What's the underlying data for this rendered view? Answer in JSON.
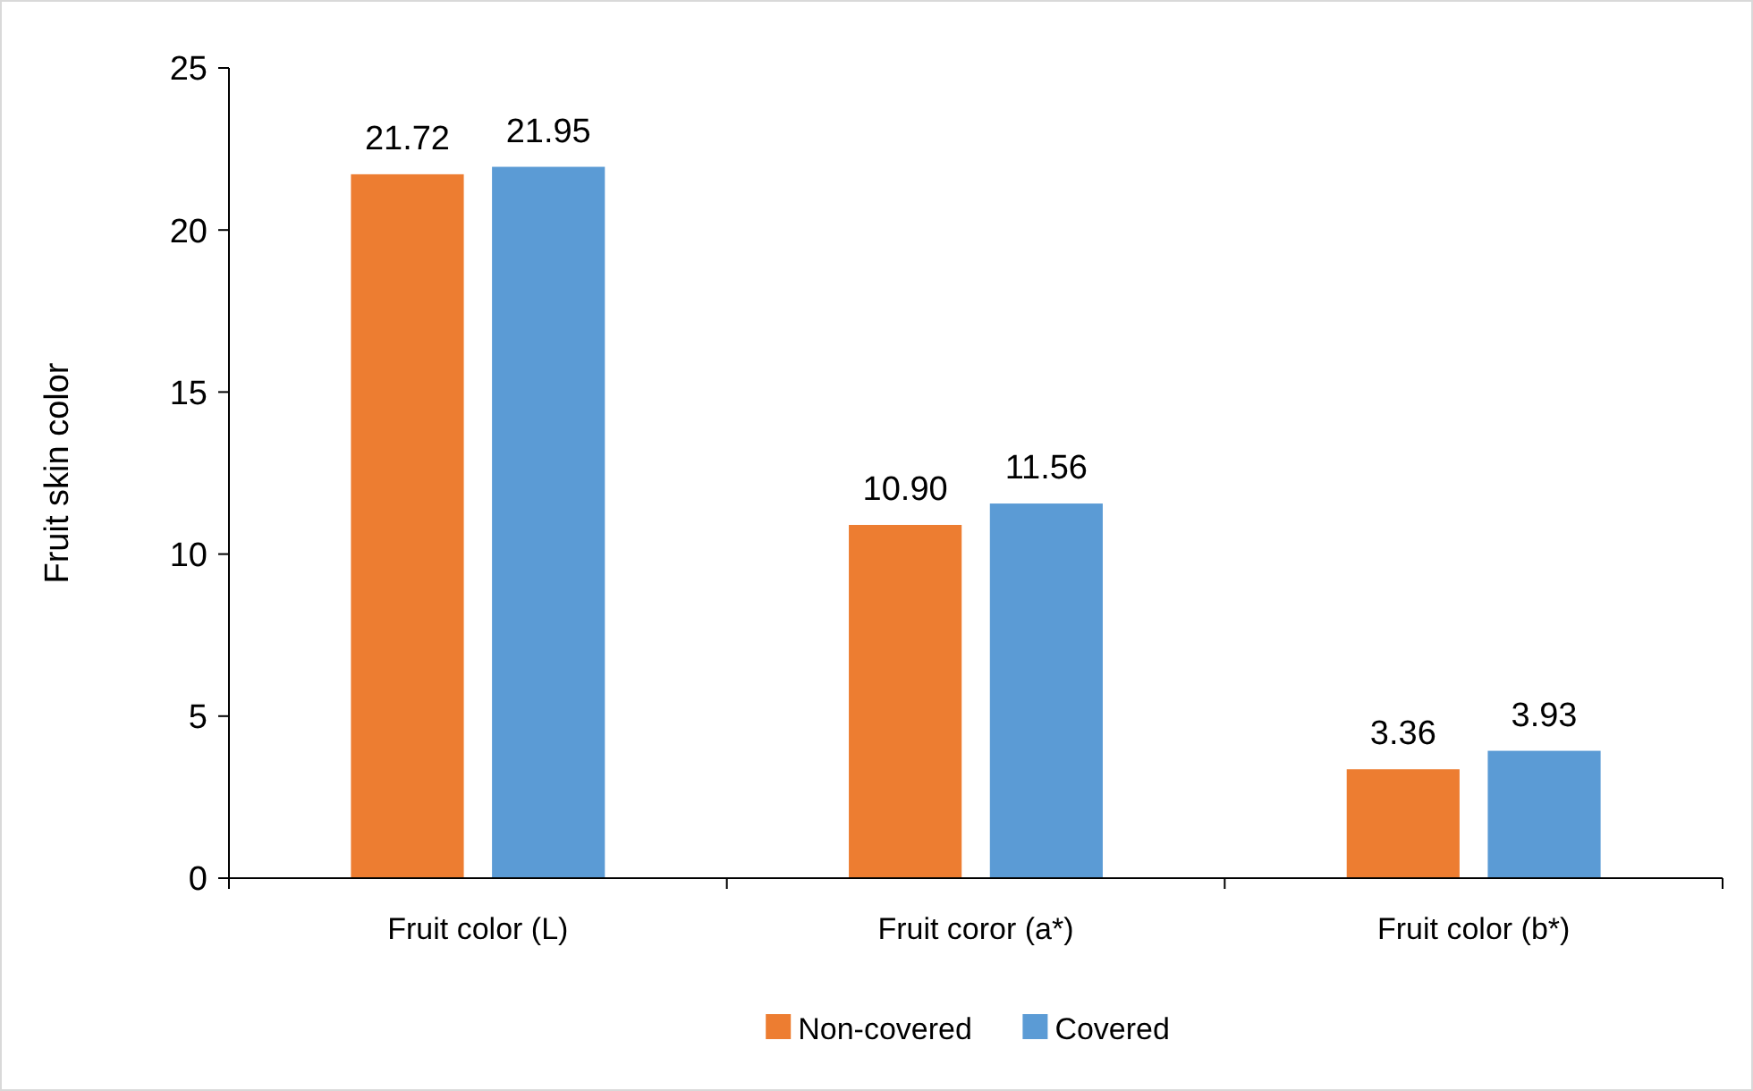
{
  "chart_data": {
    "type": "bar",
    "ylabel": "Fruit skin color",
    "categories": [
      "Fruit color (L)",
      "Fruit coror (a*)",
      "Fruit color (b*)"
    ],
    "series": [
      {
        "name": "Non-covered",
        "color": "#ed7d31",
        "values": [
          21.72,
          10.9,
          3.36
        ],
        "value_labels": [
          "21.72",
          "10.90",
          "3.36"
        ]
      },
      {
        "name": "Covered",
        "color": "#5b9bd5",
        "values": [
          21.95,
          11.56,
          3.93
        ],
        "value_labels": [
          "21.95",
          "11.56",
          "3.93"
        ]
      }
    ],
    "ylim": [
      0,
      25
    ],
    "yticks": [
      0,
      5,
      10,
      15,
      20,
      25
    ],
    "grid": false,
    "legend": "bottom"
  }
}
